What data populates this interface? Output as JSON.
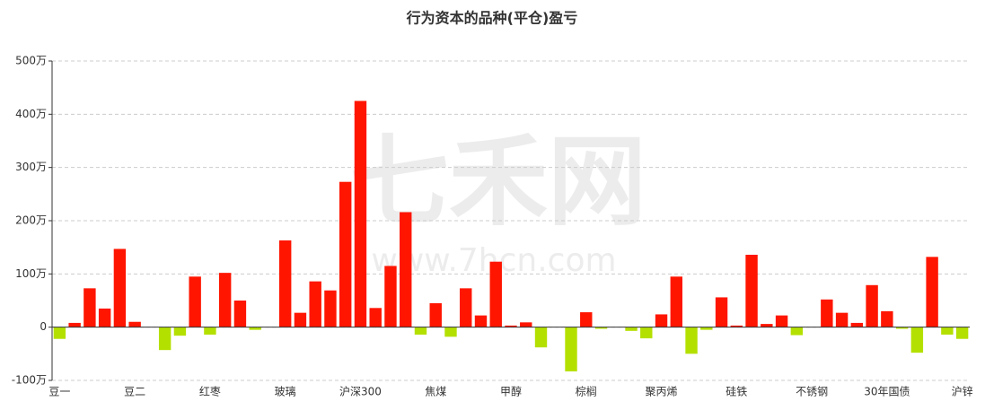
{
  "chart_data": {
    "type": "bar",
    "title": "行为资本的品种(平仓)盈亏",
    "watermark": [
      "七禾网",
      "www.7hcn.com"
    ],
    "categories": [
      "豆一",
      null,
      null,
      null,
      null,
      "豆二",
      null,
      null,
      null,
      null,
      "红枣",
      null,
      null,
      null,
      null,
      "玻璃",
      null,
      null,
      null,
      null,
      "沪深300",
      null,
      null,
      null,
      null,
      "焦煤",
      null,
      null,
      null,
      null,
      "甲醇",
      null,
      null,
      null,
      null,
      "棕榈",
      null,
      null,
      null,
      null,
      "聚丙烯",
      null,
      null,
      null,
      null,
      "硅铁",
      null,
      null,
      null,
      null,
      "不锈钢",
      null,
      null,
      null,
      null,
      "30年国债",
      null,
      null,
      null,
      null,
      "沪锌"
    ],
    "values": [
      -22,
      8,
      73,
      35,
      147,
      10,
      0,
      -43,
      -16,
      95,
      -14,
      102,
      50,
      -5,
      0,
      163,
      27,
      86,
      69,
      273,
      425,
      36,
      115,
      216,
      -14,
      45,
      -18,
      73,
      22,
      123,
      3,
      9,
      -38,
      0,
      -83,
      28,
      -3,
      0,
      -7,
      -21,
      24,
      95,
      -50,
      -5,
      56,
      3,
      136,
      6,
      22,
      -15,
      0,
      52,
      27,
      8,
      79,
      30,
      -3,
      -48,
      132,
      -14,
      -22
    ],
    "positive_color": "#ff1500",
    "negative_color": "#b4e000",
    "ylim": [
      -100,
      500
    ],
    "yticks": [
      {
        "value": -100,
        "label": "-100万"
      },
      0,
      {
        "value": 100,
        "label": "100万"
      },
      {
        "value": 200,
        "label": "200万"
      },
      {
        "value": 300,
        "label": "300万"
      },
      {
        "value": 400,
        "label": "400万"
      },
      {
        "value": 500,
        "label": "500万"
      }
    ],
    "grid": true
  }
}
